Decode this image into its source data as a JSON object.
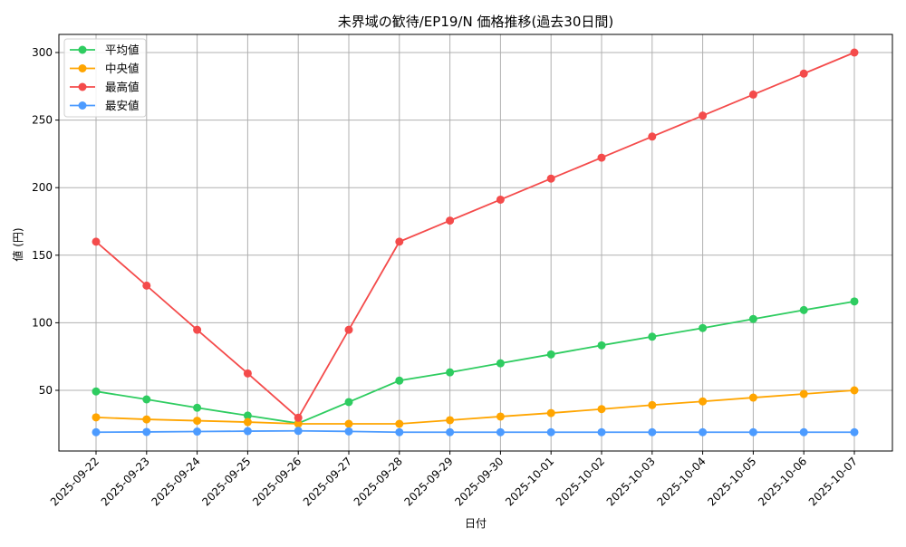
{
  "chart_data": {
    "type": "line",
    "title": "未界域の歓待/EP19/N 価格推移(過去30日間)",
    "xlabel": "日付",
    "ylabel": "値 (円)",
    "ylim": [
      10,
      313
    ],
    "yticks": [
      50,
      100,
      150,
      200,
      250,
      300
    ],
    "grid": true,
    "legend_position": "upper left",
    "categories": [
      "2025-09-22",
      "2025-09-23",
      "2025-09-24",
      "2025-09-25",
      "2025-09-26",
      "2025-09-27",
      "2025-09-28",
      "2025-09-29",
      "2025-09-30",
      "2025-10-01",
      "2025-10-02",
      "2025-10-03",
      "2025-10-04",
      "2025-10-05",
      "2025-10-06",
      "2025-10-07"
    ],
    "series": [
      {
        "name": "平均値",
        "color": "#2ecc60",
        "values": [
          49.2,
          43.3,
          37.1,
          31.3,
          25.6,
          41.3,
          57.2,
          63.3,
          70.0,
          76.6,
          83.3,
          89.7,
          96.1,
          102.8,
          109.4,
          115.8
        ]
      },
      {
        "name": "中央値",
        "color": "#ffa500",
        "values": [
          30.0,
          28.5,
          27.5,
          26.5,
          25.2,
          25.2,
          25.2,
          27.9,
          30.6,
          33.2,
          36.1,
          39.1,
          41.8,
          44.6,
          47.3,
          50.0
        ]
      },
      {
        "name": "最高値",
        "color": "#f44b4b",
        "values": [
          160.0,
          127.5,
          94.8,
          62.5,
          29.7,
          94.8,
          160.0,
          175.6,
          191.1,
          206.7,
          222.2,
          237.8,
          253.3,
          268.9,
          284.4,
          300.0
        ]
      },
      {
        "name": "最安値",
        "color": "#4c9bff",
        "values": [
          19.0,
          19.2,
          19.5,
          19.8,
          20.0,
          19.6,
          19.0,
          19.0,
          19.0,
          19.0,
          19.0,
          19.0,
          19.0,
          19.0,
          19.0,
          19.0
        ]
      }
    ]
  }
}
